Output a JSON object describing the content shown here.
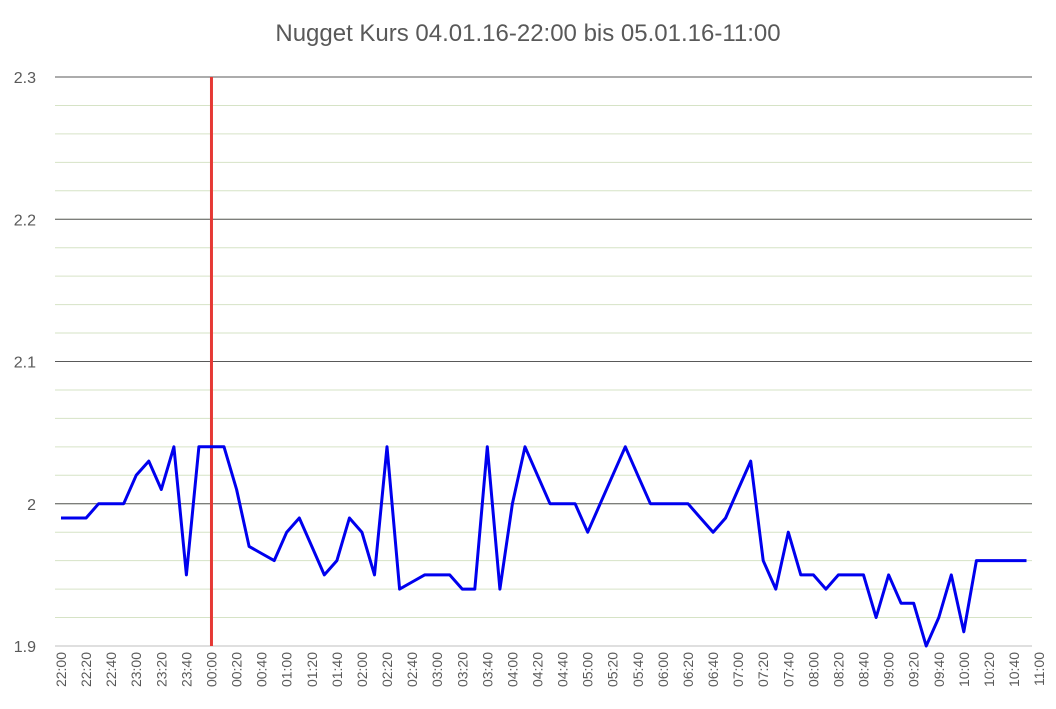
{
  "chart_data": {
    "type": "line",
    "title": "Nugget Kurs 04.01.16-22:00 bis 05.01.16-11:00",
    "xlabel": "",
    "ylabel": "",
    "ylim": [
      1.9,
      2.3
    ],
    "yticks": [
      "1.9",
      "2",
      "2.1",
      "2.2",
      "2.3"
    ],
    "minor_grid_step": 0.02,
    "x_tick_labels": [
      "22:00",
      "22:20",
      "22:40",
      "23:00",
      "23:20",
      "23:40",
      "00:00",
      "00:20",
      "00:40",
      "01:00",
      "01:20",
      "01:40",
      "02:00",
      "02:20",
      "02:40",
      "03:00",
      "03:20",
      "03:40",
      "04:00",
      "04:20",
      "04:40",
      "05:00",
      "05:20",
      "05:40",
      "06:00",
      "06:20",
      "06:40",
      "07:00",
      "07:20",
      "07:40",
      "08:00",
      "08:20",
      "08:40",
      "09:00",
      "09:20",
      "09:40",
      "10:00",
      "10:20",
      "10:40",
      "11:00"
    ],
    "series": [
      {
        "color": "#0000EE",
        "x": [
          "22:00",
          "22:10",
          "22:20",
          "22:30",
          "22:40",
          "22:50",
          "23:00",
          "23:10",
          "23:20",
          "23:30",
          "23:40",
          "23:50",
          "00:00",
          "00:10",
          "00:20",
          "00:30",
          "00:40",
          "00:50",
          "01:00",
          "01:10",
          "01:20",
          "01:30",
          "01:40",
          "01:50",
          "02:00",
          "02:10",
          "02:20",
          "02:30",
          "02:40",
          "02:50",
          "03:00",
          "03:10",
          "03:20",
          "03:30",
          "03:40",
          "03:50",
          "04:00",
          "04:10",
          "04:20",
          "04:30",
          "04:40",
          "04:50",
          "05:00",
          "05:10",
          "05:20",
          "05:30",
          "05:40",
          "05:50",
          "06:00",
          "06:10",
          "06:20",
          "06:30",
          "06:40",
          "06:50",
          "07:00",
          "07:10",
          "07:20",
          "07:30",
          "07:40",
          "07:50",
          "08:00",
          "08:10",
          "08:20",
          "08:30",
          "08:40",
          "08:50",
          "09:00",
          "09:10",
          "09:20",
          "09:30",
          "09:40",
          "09:50",
          "10:00",
          "10:10",
          "10:20",
          "10:30",
          "10:40",
          "10:50"
        ],
        "values": [
          1.99,
          1.99,
          1.99,
          2.0,
          2.0,
          2.0,
          2.02,
          2.03,
          2.01,
          2.04,
          1.95,
          2.04,
          2.04,
          2.04,
          2.01,
          1.97,
          1.965,
          1.96,
          1.98,
          1.99,
          1.97,
          1.95,
          1.96,
          1.99,
          1.98,
          1.95,
          2.04,
          1.94,
          1.945,
          1.95,
          1.95,
          1.95,
          1.94,
          1.94,
          2.04,
          1.94,
          2.0,
          2.04,
          2.02,
          2.0,
          2.0,
          2.0,
          1.98,
          2.0,
          2.02,
          2.04,
          2.02,
          2.0,
          2.0,
          2.0,
          2.0,
          1.99,
          1.98,
          1.99,
          2.01,
          2.03,
          1.96,
          1.94,
          1.98,
          1.95,
          1.95,
          1.94,
          1.95,
          1.95,
          1.95,
          1.92,
          1.95,
          1.93,
          1.93,
          1.9,
          1.92,
          1.95,
          1.91,
          1.96,
          1.96,
          1.96,
          1.96,
          1.96
        ]
      }
    ],
    "marker_line": {
      "color": "#E53935"
    },
    "grid": true,
    "legend": "none"
  }
}
